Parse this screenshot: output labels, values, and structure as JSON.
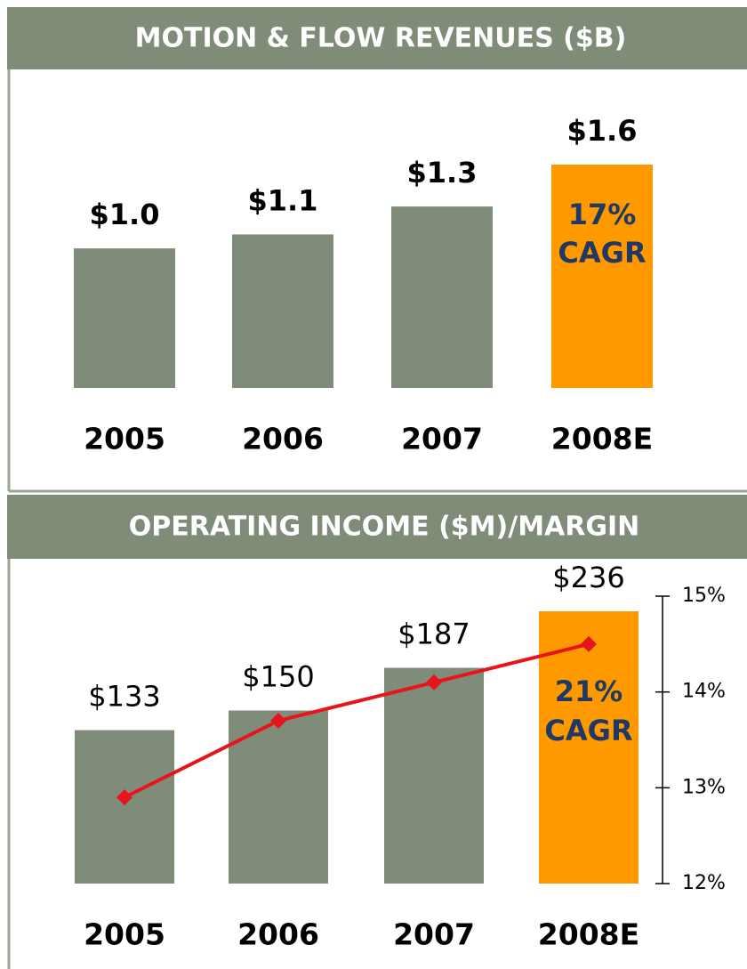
{
  "chart_data": [
    {
      "type": "bar",
      "title": "MOTION & FLOW REVENUES ($B)",
      "categories": [
        "2005",
        "2006",
        "2007",
        "2008E"
      ],
      "values": [
        1.0,
        1.1,
        1.3,
        1.6
      ],
      "value_labels": [
        "$1.0",
        "$1.1",
        "$1.3",
        "$1.6"
      ],
      "colors": [
        "#7f8c7a",
        "#7f8c7a",
        "#7f8c7a",
        "#ff9900"
      ],
      "annotation": [
        "17%",
        "CAGR"
      ]
    },
    {
      "type": "combo",
      "title": "OPERATING INCOME ($M)/MARGIN",
      "categories": [
        "2005",
        "2006",
        "2007",
        "2008E"
      ],
      "values": [
        133,
        150,
        187,
        236
      ],
      "value_labels": [
        "$133",
        "$150",
        "$187",
        "$236"
      ],
      "colors": [
        "#7f8c7a",
        "#7f8c7a",
        "#7f8c7a",
        "#ff9900"
      ],
      "annotation": [
        "21%",
        "CAGR"
      ],
      "line": {
        "color": "#e8141c",
        "axis": "y2",
        "values": [
          12.9,
          13.7,
          14.1,
          14.5
        ]
      },
      "y2lim": [
        12,
        15
      ],
      "y2ticks": [
        {
          "value": 12,
          "label": "12%"
        },
        {
          "value": 13,
          "label": "13%"
        },
        {
          "value": 14,
          "label": "14%"
        },
        {
          "value": 15,
          "label": "15%"
        }
      ]
    }
  ]
}
